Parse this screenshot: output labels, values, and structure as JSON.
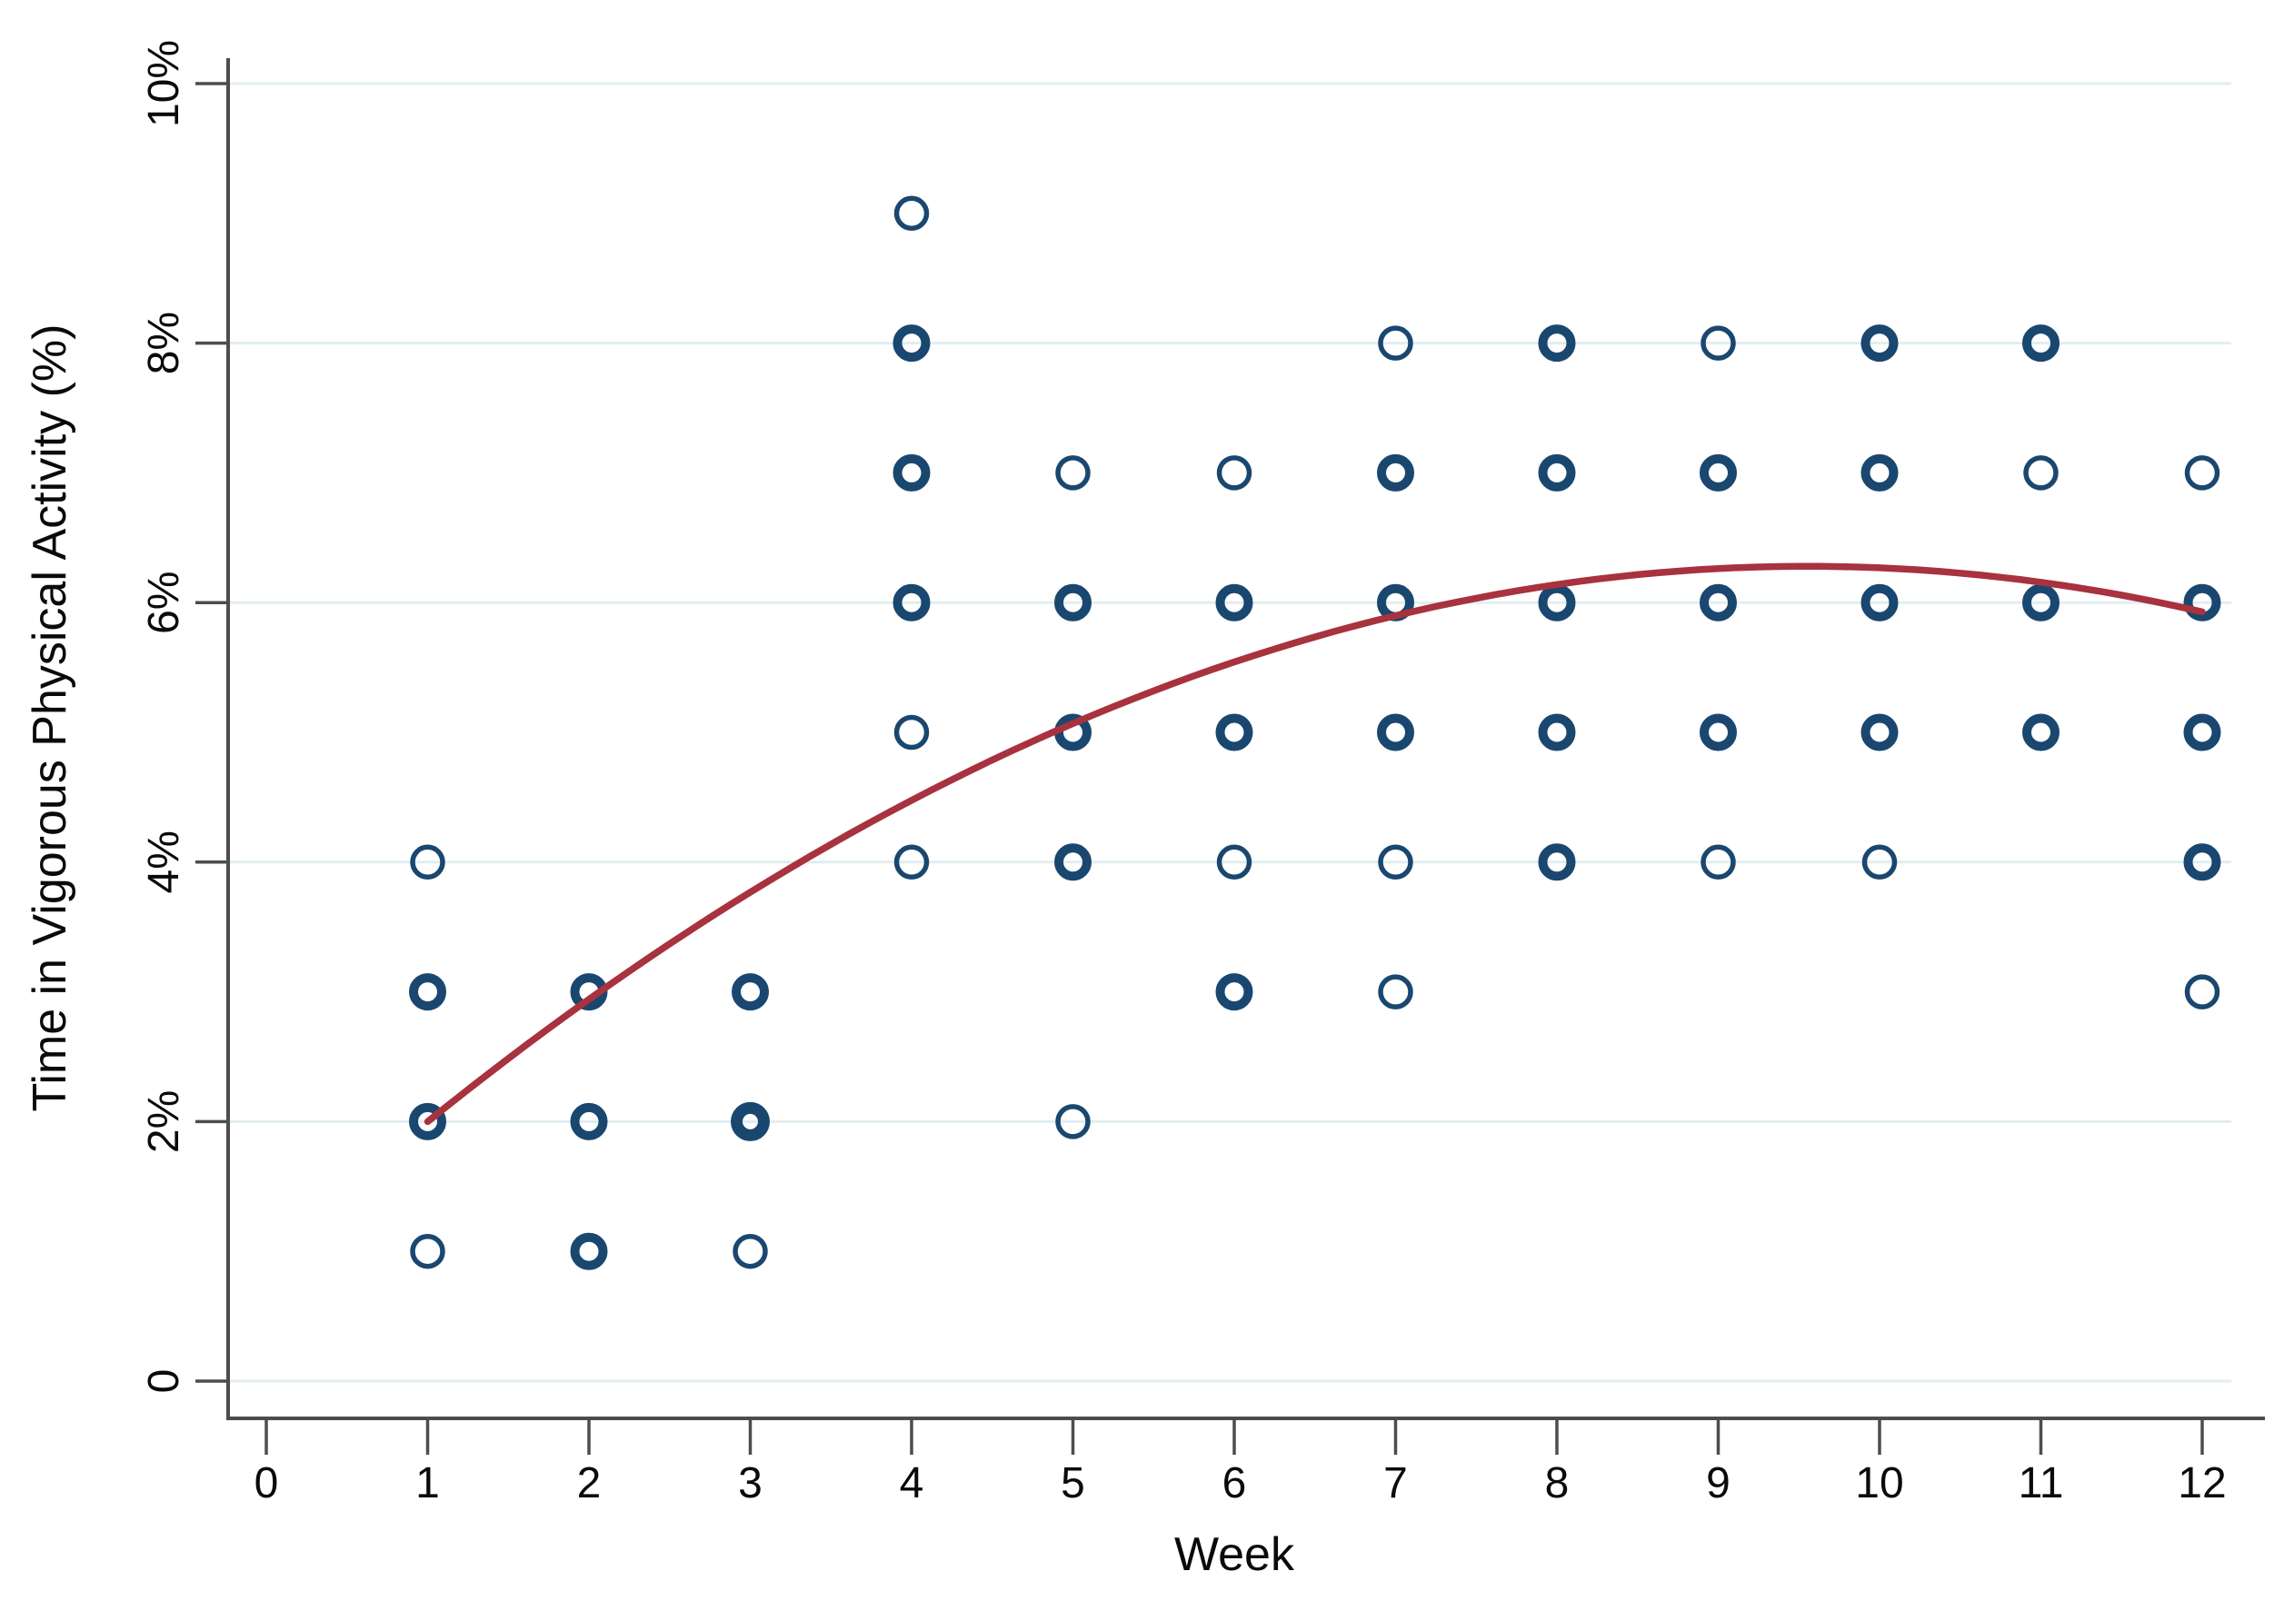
{
  "figure": {
    "background": "#ffffff",
    "description": "Scatter plot of observed weekly values with quadratic fitted trend line, Stata-style styling"
  },
  "chart_data": {
    "type": "scatter",
    "title": "",
    "xlabel": "Week",
    "ylabel": "Time in Vigorous Physical Activity (%)",
    "xlim": [
      -0.35,
      12.55
    ],
    "ylim": [
      -0.2,
      10.4
    ],
    "grid": "horizontal-only",
    "legend": "none",
    "x_ticks": {
      "values": [
        0,
        1,
        2,
        3,
        4,
        5,
        6,
        7,
        8,
        9,
        10,
        11,
        12
      ],
      "labels": [
        "0",
        "1",
        "2",
        "3",
        "4",
        "5",
        "6",
        "7",
        "8",
        "9",
        "10",
        "11",
        "12"
      ]
    },
    "y_ticks": {
      "values": [
        0,
        2,
        4,
        6,
        8,
        10
      ],
      "labels": [
        "0",
        "2%",
        "4%",
        "6%",
        "8%",
        "10%"
      ]
    },
    "points_note": "week = x value, pct = y value in percent, ring = relative marker stroke weight (1 thin, 2 bold = overlapping observations, 3 extra bold)",
    "points": [
      {
        "week": 1,
        "pct": 4,
        "ring": 1
      },
      {
        "week": 1,
        "pct": 3,
        "ring": 2
      },
      {
        "week": 1,
        "pct": 2,
        "ring": 2
      },
      {
        "week": 1,
        "pct": 1,
        "ring": 1
      },
      {
        "week": 2,
        "pct": 3,
        "ring": 2
      },
      {
        "week": 2,
        "pct": 2,
        "ring": 2
      },
      {
        "week": 2,
        "pct": 1,
        "ring": 2
      },
      {
        "week": 3,
        "pct": 3,
        "ring": 2
      },
      {
        "week": 3,
        "pct": 2,
        "ring": 3
      },
      {
        "week": 3,
        "pct": 1,
        "ring": 1
      },
      {
        "week": 4,
        "pct": 9,
        "ring": 1
      },
      {
        "week": 4,
        "pct": 8,
        "ring": 2
      },
      {
        "week": 4,
        "pct": 7,
        "ring": 2
      },
      {
        "week": 4,
        "pct": 6,
        "ring": 2
      },
      {
        "week": 4,
        "pct": 5,
        "ring": 1
      },
      {
        "week": 4,
        "pct": 4,
        "ring": 1
      },
      {
        "week": 5,
        "pct": 7,
        "ring": 1
      },
      {
        "week": 5,
        "pct": 6,
        "ring": 2
      },
      {
        "week": 5,
        "pct": 5,
        "ring": 2
      },
      {
        "week": 5,
        "pct": 4,
        "ring": 2
      },
      {
        "week": 5,
        "pct": 2,
        "ring": 1
      },
      {
        "week": 6,
        "pct": 7,
        "ring": 1
      },
      {
        "week": 6,
        "pct": 6,
        "ring": 2
      },
      {
        "week": 6,
        "pct": 5,
        "ring": 2
      },
      {
        "week": 6,
        "pct": 4,
        "ring": 1
      },
      {
        "week": 6,
        "pct": 3,
        "ring": 2
      },
      {
        "week": 7,
        "pct": 8,
        "ring": 1
      },
      {
        "week": 7,
        "pct": 7,
        "ring": 2
      },
      {
        "week": 7,
        "pct": 6,
        "ring": 2
      },
      {
        "week": 7,
        "pct": 5,
        "ring": 2
      },
      {
        "week": 7,
        "pct": 4,
        "ring": 1
      },
      {
        "week": 7,
        "pct": 3,
        "ring": 1
      },
      {
        "week": 8,
        "pct": 8,
        "ring": 2
      },
      {
        "week": 8,
        "pct": 7,
        "ring": 2
      },
      {
        "week": 8,
        "pct": 6,
        "ring": 2
      },
      {
        "week": 8,
        "pct": 5,
        "ring": 2
      },
      {
        "week": 8,
        "pct": 4,
        "ring": 2
      },
      {
        "week": 9,
        "pct": 8,
        "ring": 1
      },
      {
        "week": 9,
        "pct": 7,
        "ring": 2
      },
      {
        "week": 9,
        "pct": 6,
        "ring": 2
      },
      {
        "week": 9,
        "pct": 5,
        "ring": 2
      },
      {
        "week": 9,
        "pct": 4,
        "ring": 1
      },
      {
        "week": 10,
        "pct": 8,
        "ring": 2
      },
      {
        "week": 10,
        "pct": 7,
        "ring": 2
      },
      {
        "week": 10,
        "pct": 6,
        "ring": 2
      },
      {
        "week": 10,
        "pct": 5,
        "ring": 2
      },
      {
        "week": 10,
        "pct": 4,
        "ring": 1
      },
      {
        "week": 11,
        "pct": 8,
        "ring": 2
      },
      {
        "week": 11,
        "pct": 7,
        "ring": 1
      },
      {
        "week": 11,
        "pct": 6,
        "ring": 2
      },
      {
        "week": 11,
        "pct": 5,
        "ring": 2
      },
      {
        "week": 12,
        "pct": 7,
        "ring": 1
      },
      {
        "week": 12,
        "pct": 6,
        "ring": 2
      },
      {
        "week": 12,
        "pct": 5,
        "ring": 2
      },
      {
        "week": 12,
        "pct": 4,
        "ring": 2
      },
      {
        "week": 12,
        "pct": 3,
        "ring": 1
      }
    ],
    "trend_line": {
      "type": "quadratic-fit",
      "equation": "pct = 6.28 - 0.05855 * (week - 9.55)^2",
      "vertex_week": 9.55,
      "vertex_pct": 6.28,
      "coeff": -0.05855,
      "start_week": 1,
      "end_week": 12,
      "start_pct": 2.0,
      "end_pct": 5.93
    },
    "colors": {
      "marker": "#1a476f",
      "trend": "#a8323e",
      "grid": "#e1eef1",
      "axis": "#4d4d4d",
      "text": "#0a0a0a",
      "background": "#ffffff"
    }
  }
}
